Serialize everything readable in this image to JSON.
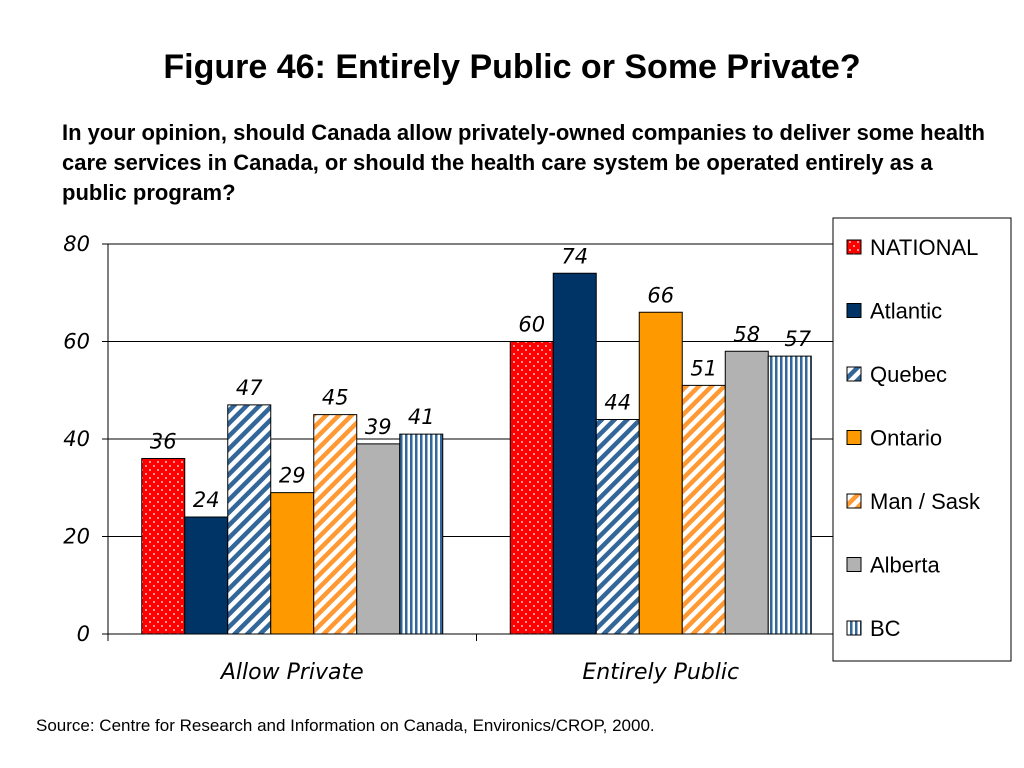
{
  "title": "Figure 46: Entirely Public or Some Private?",
  "subtitle": "In your opinion, should Canada allow privately-owned companies to deliver some health care services in Canada, or should the health care system be operated entirely as a public program?",
  "source": "Source: Centre for Research and Information on Canada, Environics/CROP, 2000.",
  "chart_data": {
    "type": "bar",
    "categories": [
      "Allow Private",
      "Entirely Public"
    ],
    "series": [
      {
        "name": "NATIONAL",
        "values": [
          36,
          60
        ],
        "color": "#ff0000",
        "pattern": "dots"
      },
      {
        "name": "Atlantic",
        "values": [
          24,
          74
        ],
        "color": "#003366",
        "pattern": "solid"
      },
      {
        "name": "Quebec",
        "values": [
          47,
          44
        ],
        "color": "#336699",
        "pattern": "diagonal"
      },
      {
        "name": "Ontario",
        "values": [
          29,
          66
        ],
        "color": "#ff9900",
        "pattern": "solid"
      },
      {
        "name": "Man / Sask",
        "values": [
          45,
          51
        ],
        "color": "#ff9933",
        "pattern": "diagonal"
      },
      {
        "name": "Alberta",
        "values": [
          39,
          58
        ],
        "color": "#b2b2b2",
        "pattern": "solid"
      },
      {
        "name": "BC",
        "values": [
          41,
          57
        ],
        "color": "#336699",
        "pattern": "vertical"
      }
    ],
    "ylim": [
      0,
      80
    ],
    "yticks": [
      0,
      20,
      40,
      60,
      80
    ],
    "xlabel": "",
    "ylabel": "",
    "grid": true,
    "legend": "right"
  }
}
